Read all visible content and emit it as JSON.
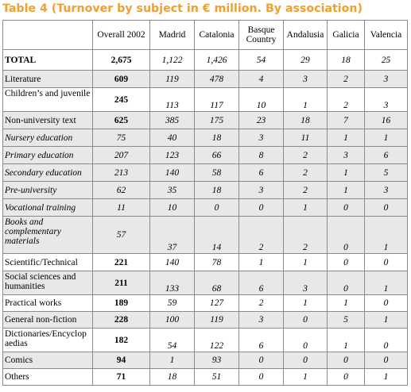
{
  "title": "Table 4 (Turnover by subject in € million.  By association)",
  "columns": [
    "",
    "Overall 2002",
    "Madrid",
    "Catalonia",
    "Basque Country",
    "Andalusia",
    "Galicia",
    "Valencia"
  ],
  "rows": [
    {
      "label": "TOTAL",
      "overall": "2,675",
      "values": [
        "1,122",
        "1,426",
        "54",
        "29",
        "18",
        "25"
      ]
    },
    {
      "label": "Literature",
      "overall": "609",
      "values": [
        "119",
        "478",
        "4",
        "3",
        "2",
        "3"
      ]
    },
    {
      "label": "Children’s and juvenile",
      "overall": "245",
      "values": [
        "113",
        "117",
        "10",
        "1",
        "2",
        "3"
      ]
    },
    {
      "label": "Non-university text",
      "overall": "625",
      "values": [
        "385",
        "175",
        "23",
        "18",
        "7",
        "16"
      ]
    },
    {
      "label": "Nursery education",
      "overall": "75",
      "values": [
        "40",
        "18",
        "3",
        "11",
        "1",
        "1"
      ]
    },
    {
      "label": "Primary education",
      "overall": "207",
      "values": [
        "123",
        "66",
        "8",
        "2",
        "3",
        "6"
      ]
    },
    {
      "label": "Secondary education",
      "overall": "213",
      "values": [
        "140",
        "58",
        "6",
        "2",
        "1",
        "5"
      ]
    },
    {
      "label": "Pre-university",
      "overall": "62",
      "values": [
        "35",
        "18",
        "3",
        "2",
        "1",
        "3"
      ]
    },
    {
      "label": "Vocational training",
      "overall": "11",
      "values": [
        "10",
        "0",
        "0",
        "1",
        "0",
        "0"
      ]
    },
    {
      "label": "Books and complementary materials",
      "overall": "57",
      "values": [
        "37",
        "14",
        "2",
        "2",
        "0",
        "1"
      ]
    },
    {
      "label": "Scientific/Technical",
      "overall": "221",
      "values": [
        "140",
        "78",
        "1",
        "1",
        "0",
        "0"
      ]
    },
    {
      "label": "Social sciences and humanities",
      "overall": "211",
      "values": [
        "133",
        "68",
        "6",
        "3",
        "0",
        "1"
      ]
    },
    {
      "label": "Practical works",
      "overall": "189",
      "values": [
        "59",
        "127",
        "2",
        "1",
        "1",
        "0"
      ]
    },
    {
      "label": "General non-fiction",
      "overall": "228",
      "values": [
        "100",
        "119",
        "3",
        "0",
        "5",
        "1"
      ]
    },
    {
      "label": "Dictionaries/Encyclop aedias",
      "overall": "182",
      "values": [
        "54",
        "122",
        "6",
        "0",
        "1",
        "0"
      ]
    },
    {
      "label": "Comics",
      "overall": "94",
      "values": [
        "1",
        "93",
        "0",
        "0",
        "0",
        "0"
      ]
    },
    {
      "label": "Others",
      "overall": "71",
      "values": [
        "18",
        "51",
        "0",
        "1",
        "0",
        "1"
      ]
    }
  ]
}
